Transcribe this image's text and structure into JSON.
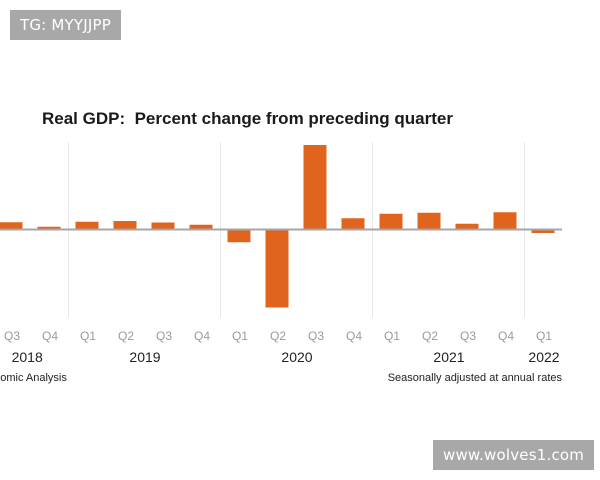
{
  "watermarks": {
    "top": "TG: MYYJJPP",
    "bottom": "www.wolves1.com"
  },
  "colors": {
    "bar": "#E0641C",
    "baseline": "#a6a6a6",
    "gridline": "#e6e6e6"
  },
  "chart_data": {
    "type": "bar",
    "title": "Real GDP:  Percent change from preceding quarter",
    "xlabel": "",
    "ylabel": "",
    "categories": [
      "Q3",
      "Q4",
      "Q1",
      "Q2",
      "Q3",
      "Q4",
      "Q1",
      "Q2",
      "Q3",
      "Q4",
      "Q1",
      "Q2",
      "Q3",
      "Q4",
      "Q1"
    ],
    "periods": [
      "2018Q3",
      "2018Q4",
      "2019Q1",
      "2019Q2",
      "2019Q3",
      "2019Q4",
      "2020Q1",
      "2020Q2",
      "2020Q3",
      "2020Q4",
      "2021Q1",
      "2021Q2",
      "2021Q3",
      "2021Q4",
      "2022Q1"
    ],
    "values": [
      2.9,
      1.1,
      3.1,
      3.4,
      2.8,
      1.9,
      -5.1,
      -31.2,
      33.8,
      4.5,
      6.3,
      6.7,
      2.3,
      6.9,
      -1.4
    ],
    "year_labels": [
      {
        "label": "2018",
        "after_index": 0.4
      },
      {
        "label": "2019",
        "after_index": 3.5
      },
      {
        "label": "2020",
        "after_index": 7.5
      },
      {
        "label": "2021",
        "after_index": 11.5
      },
      {
        "label": "2022",
        "after_index": 14
      }
    ],
    "year_separators_before_index": [
      2,
      6,
      10,
      14
    ],
    "ylim": [
      -35,
      35
    ],
    "grid": "vertical year separators",
    "legend": "none",
    "source_left": "onomic Analysis",
    "source_right": "Seasonally adjusted at annual rates"
  }
}
